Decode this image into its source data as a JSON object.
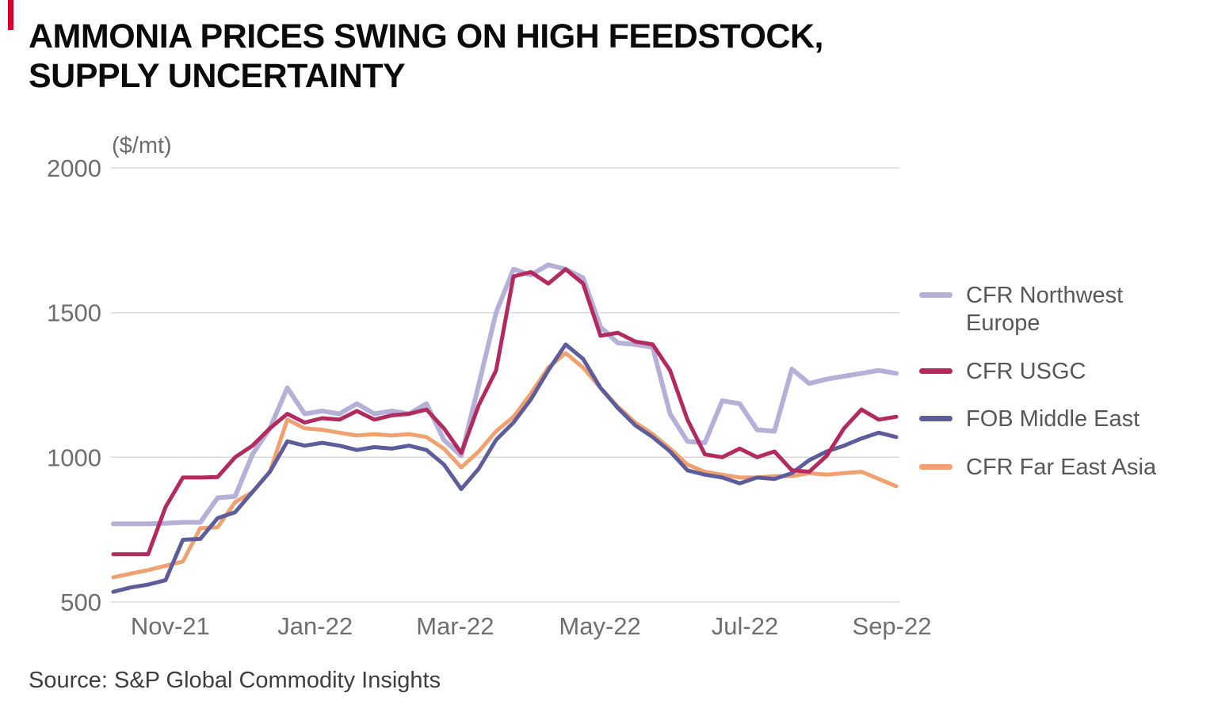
{
  "accent_color": "#d6002a",
  "title": {
    "line1": "AMMONIA PRICES SWING ON HIGH FEEDSTOCK,",
    "line2": "SUPPLY UNCERTAINTY"
  },
  "source": "Source: S&P Global Commodity Insights",
  "chart_data": {
    "type": "line",
    "title": "AMMONIA PRICES SWING ON HIGH FEEDSTOCK, SUPPLY UNCERTAINTY",
    "unit_label": "($/mt)",
    "ylim": [
      500,
      2000
    ],
    "y_ticks": [
      500,
      1000,
      1500,
      2000
    ],
    "grid": "horizontal",
    "legend_position": "right",
    "x_domain": [
      "Oct-21",
      "Sep-22"
    ],
    "x_ticks": [
      {
        "label": "Nov-21",
        "pos": 3.27
      },
      {
        "label": "Jan-22",
        "pos": 11.6
      },
      {
        "label": "Mar-22",
        "pos": 19.65
      },
      {
        "label": "May-22",
        "pos": 27.97
      },
      {
        "label": "Jul-22",
        "pos": 36.3
      },
      {
        "label": "Sep-22",
        "pos": 44.75
      }
    ],
    "series": [
      {
        "name": "CFR Northwest Europe",
        "color": "#b5b0d8",
        "values": [
          770,
          770,
          770,
          772,
          775,
          775,
          860,
          865,
          1010,
          1100,
          1240,
          1150,
          1160,
          1150,
          1185,
          1150,
          1160,
          1150,
          1185,
          1060,
          1005,
          1250,
          1500,
          1650,
          1630,
          1665,
          1650,
          1620,
          1450,
          1395,
          1390,
          1380,
          1150,
          1055,
          1050,
          1195,
          1185,
          1095,
          1090,
          1305,
          1255,
          1270,
          1280,
          1290,
          1300,
          1290
        ]
      },
      {
        "name": "CFR USGC",
        "color": "#b32a5f",
        "values": [
          665,
          665,
          665,
          828,
          930,
          930,
          932,
          1000,
          1040,
          1100,
          1150,
          1120,
          1135,
          1130,
          1160,
          1130,
          1145,
          1150,
          1165,
          1100,
          1015,
          1180,
          1300,
          1625,
          1640,
          1600,
          1650,
          1600,
          1420,
          1430,
          1400,
          1390,
          1300,
          1130,
          1010,
          1000,
          1030,
          1000,
          1020,
          955,
          950,
          1005,
          1100,
          1165,
          1130,
          1140
        ]
      },
      {
        "name": "FOB Middle East",
        "color": "#5e5d9c",
        "values": [
          535,
          550,
          560,
          575,
          715,
          718,
          790,
          810,
          880,
          950,
          1055,
          1040,
          1050,
          1040,
          1025,
          1035,
          1030,
          1040,
          1025,
          975,
          890,
          960,
          1060,
          1120,
          1200,
          1300,
          1390,
          1340,
          1240,
          1170,
          1110,
          1070,
          1020,
          955,
          940,
          930,
          910,
          930,
          925,
          945,
          990,
          1020,
          1040,
          1065,
          1085,
          1070
        ]
      },
      {
        "name": "CFR Far East Asia",
        "color": "#f1a170",
        "values": [
          585,
          598,
          610,
          625,
          640,
          755,
          758,
          845,
          880,
          950,
          1130,
          1100,
          1095,
          1085,
          1075,
          1080,
          1075,
          1080,
          1070,
          1030,
          965,
          1020,
          1090,
          1140,
          1220,
          1310,
          1360,
          1310,
          1240,
          1175,
          1120,
          1080,
          1030,
          975,
          950,
          940,
          930,
          930,
          935,
          935,
          945,
          940,
          945,
          950,
          925,
          900
        ]
      }
    ]
  }
}
